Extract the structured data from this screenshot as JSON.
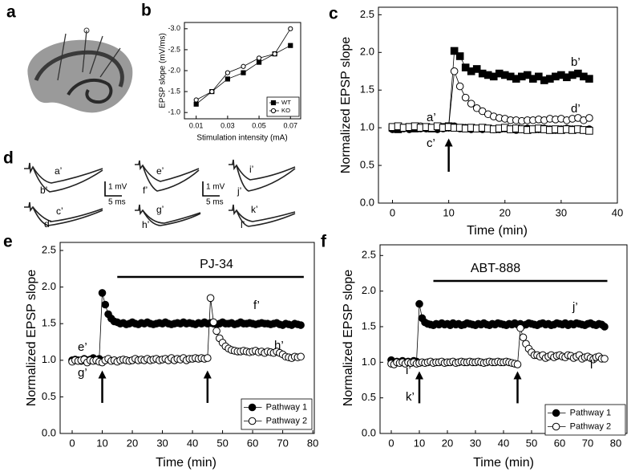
{
  "panel_labels": [
    "a",
    "b",
    "c",
    "d",
    "e",
    "f"
  ],
  "traces": {
    "labels": [
      "a’",
      "b’",
      "c’",
      "d’",
      "e’",
      "f’",
      "g’",
      "h’",
      "i’",
      "j’",
      "k’",
      "l’"
    ],
    "scale_voltage": "1 mV",
    "scale_time": "5 ms"
  },
  "chart_data": [
    {
      "type": "line",
      "y_label": "EPSP slope (mV/ms)",
      "x_label": "Stimulation intensity (mA)",
      "x": [
        0.01,
        0.02,
        0.03,
        0.04,
        0.05,
        0.06,
        0.07
      ],
      "xlim": [
        0.0025,
        0.0765
      ],
      "xticks": [
        0.01,
        0.03,
        0.05,
        0.07
      ],
      "ylim": [
        -0.85,
        -3.15
      ],
      "yticks": [
        {
          "value": -1,
          "label": "-1.0"
        },
        -1.5,
        {
          "value": -2,
          "label": "-2.0"
        },
        -2.5,
        {
          "value": -3,
          "label": "-3.0"
        }
      ],
      "legend": "lower right",
      "series": [
        {
          "name": "WT",
          "marker": "square",
          "filled": true,
          "color": "#000000",
          "values": [
            -1.2,
            -1.5,
            -1.8,
            -1.95,
            -2.2,
            -2.4,
            -2.6
          ]
        },
        {
          "name": "KO",
          "marker": "circle",
          "filled": false,
          "color": "#000000",
          "values": [
            -1.3,
            -1.5,
            -1.95,
            -2.1,
            -2.3,
            -2.4,
            -3.0
          ]
        }
      ]
    },
    {
      "type": "line",
      "y_label": "Normalized EPSP slope",
      "x_label": "Time (min)",
      "x": [
        0,
        1,
        2,
        3,
        4,
        5,
        6,
        7,
        8,
        9,
        10,
        11,
        12,
        13,
        14,
        15,
        16,
        17,
        18,
        19,
        20,
        21,
        22,
        23,
        24,
        25,
        26,
        27,
        28,
        29,
        30,
        31,
        32,
        33,
        34,
        35
      ],
      "xlim": [
        -2.5,
        40
      ],
      "xticks": [
        0,
        10,
        20,
        30,
        40
      ],
      "ylim": [
        0,
        2.6
      ],
      "yticks": [
        {
          "value": 0,
          "label": "0.0"
        },
        0.5,
        {
          "value": 1,
          "label": "1.0"
        },
        1.5,
        {
          "value": 2,
          "label": "2.0"
        },
        2.5
      ],
      "arrows": [
        10
      ],
      "annotations": [
        "a’",
        "b’",
        "c’",
        "d’"
      ],
      "series": [
        {
          "marker": "square",
          "filled": true,
          "color": "#000000",
          "values": [
            1.0,
            0.98,
            1.0,
            1.01,
            0.99,
            1.0,
            1.0,
            0.99,
            1.0,
            1.01,
            1.02,
            2.02,
            1.95,
            1.8,
            1.75,
            1.78,
            1.72,
            1.7,
            1.68,
            1.72,
            1.7,
            1.68,
            1.65,
            1.68,
            1.7,
            1.65,
            1.68,
            1.63,
            1.65,
            1.68,
            1.7,
            1.67,
            1.7,
            1.72,
            1.68,
            1.65
          ]
        },
        {
          "marker": "circle",
          "filled": false,
          "color": "#000000",
          "values": [
            1.0,
            1.01,
            0.99,
            1.0,
            1.0,
            1.02,
            0.99,
            1.0,
            1.0,
            1.0,
            1.02,
            1.75,
            1.55,
            1.4,
            1.32,
            1.26,
            1.22,
            1.18,
            1.15,
            1.13,
            1.12,
            1.1,
            1.1,
            1.09,
            1.1,
            1.1,
            1.11,
            1.1,
            1.12,
            1.11,
            1.12,
            1.1,
            1.12,
            1.13,
            1.1,
            1.13
          ]
        },
        {
          "marker": "circle",
          "filled": true,
          "color": "#000000",
          "values": [
            0.98,
            0.99,
            1.0,
            0.98,
            1.0,
            0.99,
            0.99,
            1.0,
            0.98,
            0.99,
            1.0,
            1.02,
            0.99,
            1.0,
            0.98,
            0.99,
            0.98,
            0.99,
            0.98,
            0.98,
            0.99,
            0.98,
            0.97,
            0.98,
            0.99,
            0.98,
            0.98,
            0.99,
            0.98,
            0.97,
            0.98,
            0.99,
            0.98,
            0.98,
            0.97,
            0.98
          ]
        },
        {
          "marker": "square",
          "filled": false,
          "color": "#000000",
          "values": [
            1.01,
            1.02,
            1.0,
            1.01,
            1.02,
            1.0,
            1.01,
            1.0,
            1.02,
            1.0,
            1.01,
            1.0,
            1.0,
            0.99,
            1.0,
            0.99,
            1.0,
            0.99,
            0.98,
            0.99,
            1.0,
            0.98,
            0.99,
            0.98,
            0.97,
            0.98,
            0.99,
            0.98,
            0.97,
            0.98,
            0.97,
            0.98,
            0.97,
            0.98,
            0.97,
            0.96
          ]
        }
      ]
    },
    {
      "type": "line",
      "y_label": "Normalized EPSP slope",
      "x_label": "Time (min)",
      "x": [
        0,
        1,
        2,
        3,
        4,
        5,
        6,
        7,
        8,
        9,
        10,
        11,
        12,
        13,
        14,
        15,
        16,
        17,
        18,
        19,
        20,
        21,
        22,
        23,
        24,
        25,
        26,
        27,
        28,
        29,
        30,
        31,
        32,
        33,
        34,
        35,
        36,
        37,
        38,
        39,
        40,
        41,
        42,
        43,
        44,
        45,
        46,
        47,
        48,
        49,
        50,
        51,
        52,
        53,
        54,
        55,
        56,
        57,
        58,
        59,
        60,
        61,
        62,
        63,
        64,
        65,
        66,
        67,
        68,
        69,
        70,
        71,
        72,
        73,
        74,
        75,
        76
      ],
      "xlim": [
        -4,
        80.5
      ],
      "xticks": [
        0,
        10,
        20,
        30,
        40,
        50,
        60,
        70,
        80
      ],
      "ylim": [
        0,
        2.61
      ],
      "yticks": [
        {
          "value": 0,
          "label": "0.0"
        },
        0.5,
        {
          "value": 1,
          "label": "1.0"
        },
        1.5,
        {
          "value": 2,
          "label": "2.0"
        },
        2.5
      ],
      "arrows": [
        10,
        45
      ],
      "treatment": {
        "label": "PJ-34",
        "x": [
          15,
          77
        ]
      },
      "annotations": [
        "e’",
        "f’",
        "g’",
        "h’"
      ],
      "legend": "lower right",
      "series": [
        {
          "name": "Pathway 1",
          "marker": "circle",
          "filled": true,
          "color": "#000000",
          "values": [
            1.0,
            1.01,
            1.0,
            0.99,
            1.02,
            1.0,
            1.01,
            1.03,
            1.0,
            1.02,
            1.92,
            1.76,
            1.63,
            1.57,
            1.53,
            1.52,
            1.5,
            1.51,
            1.49,
            1.5,
            1.52,
            1.5,
            1.49,
            1.51,
            1.5,
            1.52,
            1.5,
            1.49,
            1.5,
            1.51,
            1.5,
            1.52,
            1.5,
            1.49,
            1.5,
            1.51,
            1.5,
            1.52,
            1.5,
            1.51,
            1.5,
            1.49,
            1.51,
            1.5,
            1.52,
            1.5,
            1.51,
            1.5,
            1.49,
            1.5,
            1.52,
            1.5,
            1.5,
            1.51,
            1.49,
            1.5,
            1.52,
            1.5,
            1.5,
            1.51,
            1.5,
            1.49,
            1.5,
            1.51,
            1.5,
            1.5,
            1.49,
            1.5,
            1.51,
            1.49,
            1.48,
            1.5,
            1.49,
            1.48,
            1.5,
            1.49,
            1.48
          ]
        },
        {
          "name": "Pathway 2",
          "marker": "circle",
          "filled": false,
          "color": "#000000",
          "values": [
            0.98,
            1.0,
            0.99,
            1.0,
            1.01,
            0.97,
            1.0,
            0.99,
            1.0,
            0.98,
            0.97,
            1.0,
            1.02,
            0.99,
            1.0,
            0.98,
            1.0,
            1.01,
            1.0,
            0.99,
            1.0,
            1.02,
            1.0,
            1.01,
            1.0,
            1.02,
            1.0,
            1.01,
            1.02,
            1.0,
            1.01,
            1.02,
            1.0,
            1.03,
            1.0,
            1.02,
            1.01,
            1.03,
            1.0,
            1.02,
            1.02,
            1.03,
            1.02,
            1.03,
            1.02,
            1.03,
            1.85,
            1.52,
            1.4,
            1.3,
            1.24,
            1.19,
            1.16,
            1.14,
            1.13,
            1.12,
            1.12,
            1.13,
            1.12,
            1.11,
            1.12,
            1.13,
            1.11,
            1.12,
            1.1,
            1.12,
            1.11,
            1.1,
            1.12,
            1.1,
            1.08,
            1.05,
            1.04,
            1.03,
            1.05,
            1.04,
            1.05
          ]
        }
      ]
    },
    {
      "type": "line",
      "y_label": "Normalized EPSP slope",
      "x_label": "Time (min)",
      "x": [
        0,
        1,
        2,
        3,
        4,
        5,
        6,
        7,
        8,
        9,
        10,
        11,
        12,
        13,
        14,
        15,
        16,
        17,
        18,
        19,
        20,
        21,
        22,
        23,
        24,
        25,
        26,
        27,
        28,
        29,
        30,
        31,
        32,
        33,
        34,
        35,
        36,
        37,
        38,
        39,
        40,
        41,
        42,
        43,
        44,
        45,
        46,
        47,
        48,
        49,
        50,
        51,
        52,
        53,
        54,
        55,
        56,
        57,
        58,
        59,
        60,
        61,
        62,
        63,
        64,
        65,
        66,
        67,
        68,
        69,
        70,
        71,
        72,
        73,
        74,
        75,
        76
      ],
      "xlim": [
        -4,
        84
      ],
      "xticks": [
        0,
        10,
        20,
        30,
        40,
        50,
        60,
        70,
        80
      ],
      "ylim": [
        0,
        2.65
      ],
      "yticks": [
        {
          "value": 0,
          "label": "0.0"
        },
        0.5,
        {
          "value": 1,
          "label": "1.0"
        },
        1.5,
        {
          "value": 2,
          "label": "2.0"
        },
        2.5
      ],
      "arrows": [
        10,
        45
      ],
      "treatment": {
        "label": "ABT-888",
        "x": [
          15,
          77
        ]
      },
      "annotations": [
        "i’",
        "j’",
        "k’",
        "l’"
      ],
      "legend": "lower right",
      "series": [
        {
          "name": "Pathway 1",
          "marker": "circle",
          "filled": true,
          "color": "#000000",
          "values": [
            1.03,
            1.0,
            1.01,
            1.0,
            1.02,
            1.0,
            1.01,
            1.0,
            1.02,
            1.01,
            1.82,
            1.62,
            1.56,
            1.54,
            1.53,
            1.52,
            1.54,
            1.53,
            1.55,
            1.53,
            1.54,
            1.52,
            1.55,
            1.53,
            1.54,
            1.52,
            1.53,
            1.55,
            1.54,
            1.53,
            1.52,
            1.54,
            1.53,
            1.55,
            1.53,
            1.52,
            1.54,
            1.53,
            1.55,
            1.54,
            1.53,
            1.52,
            1.54,
            1.53,
            1.55,
            1.53,
            1.54,
            1.52,
            1.53,
            1.55,
            1.54,
            1.53,
            1.52,
            1.54,
            1.55,
            1.53,
            1.54,
            1.52,
            1.53,
            1.55,
            1.54,
            1.53,
            1.55,
            1.52,
            1.54,
            1.53,
            1.55,
            1.54,
            1.53,
            1.52,
            1.54,
            1.55,
            1.53,
            1.52,
            1.54,
            1.53,
            1.5
          ]
        },
        {
          "name": "Pathway 2",
          "marker": "circle",
          "filled": false,
          "color": "#000000",
          "values": [
            0.98,
            0.97,
            1.0,
            0.99,
            1.0,
            0.98,
            1.0,
            0.99,
            1.0,
            0.98,
            0.99,
            1.0,
            0.99,
            1.0,
            1.01,
            0.99,
            1.0,
            1.0,
            1.01,
            0.99,
            1.0,
            1.0,
            1.01,
            0.99,
            1.0,
            1.01,
            1.0,
            1.0,
            1.01,
            1.0,
            1.0,
            1.01,
            1.0,
            0.99,
            1.0,
            1.01,
            1.0,
            1.0,
            1.01,
            1.0,
            1.0,
            1.01,
            1.0,
            0.99,
            0.98,
            0.97,
            1.48,
            1.35,
            1.26,
            1.19,
            1.14,
            1.1,
            1.1,
            1.08,
            1.1,
            1.06,
            1.08,
            1.1,
            1.07,
            1.09,
            1.1,
            1.08,
            1.07,
            1.1,
            1.09,
            1.06,
            1.08,
            1.1,
            1.05,
            1.07,
            1.08,
            1.06,
            1.04,
            1.07,
            1.08,
            1.05,
            1.05
          ]
        }
      ]
    }
  ]
}
